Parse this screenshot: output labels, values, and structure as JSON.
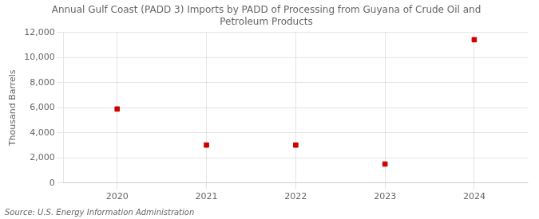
{
  "chart_data": {
    "type": "scatter",
    "title": "Annual Gulf Coast (PADD 3) Imports by PADD of Processing from Guyana of Crude Oil and\nPetroleum Products",
    "ylabel": "Thousand Barrels",
    "annotations": [
      "Source: U.S. Energy Information Administration"
    ],
    "x": [
      2020,
      2021,
      2022,
      2023,
      2024
    ],
    "values": [
      5901,
      3024,
      3024,
      1512,
      11424
    ],
    "color": "#cc0000",
    "marker": "square",
    "xlim": [
      2019.4,
      2024.6
    ],
    "xticks": [
      2020,
      2021,
      2022,
      2023,
      2024
    ],
    "ylim": [
      0,
      12000
    ],
    "yticks": [
      0,
      {
        "value": 2000,
        "label": "2,000"
      },
      {
        "value": 4000,
        "label": "4,000"
      },
      {
        "value": 6000,
        "label": "6,000"
      },
      {
        "value": 8000,
        "label": "8,000"
      },
      {
        "value": 10000,
        "label": "10,000"
      },
      {
        "value": 12000,
        "label": "12,000"
      }
    ],
    "grid": true
  }
}
